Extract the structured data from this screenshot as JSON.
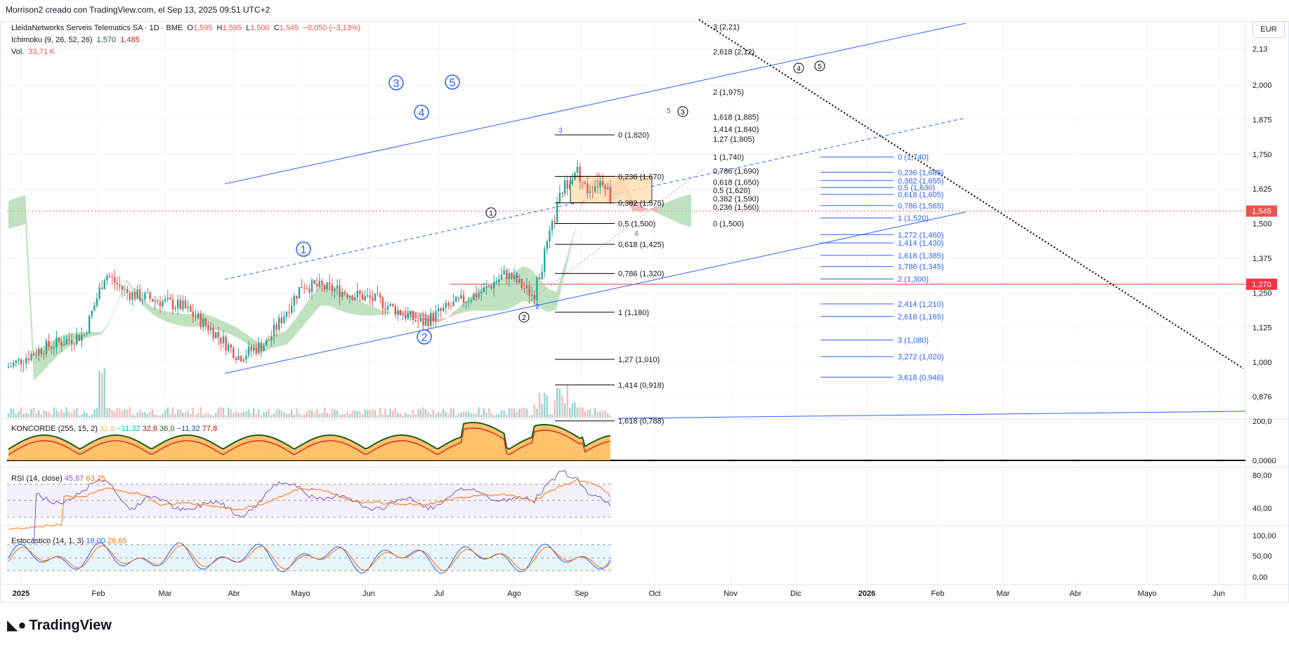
{
  "header": {
    "caption": "Morrison2 creado con TradingView.com, el Sep 13, 2025 09:51 UTC+2"
  },
  "legend": {
    "symbol": "LleidaNetworks Serveis Telematics SA · 1D · BME",
    "o_label": "O",
    "o": "1,595",
    "h_label": "H",
    "h": "1,595",
    "l_label": "L",
    "l": "1,500",
    "c_label": "C",
    "c": "1,545",
    "change": "−0,050 (−3,13%)",
    "ichimoku": "Ichimoku (9, 26, 52, 26)",
    "ichi_v1": "1,570",
    "ichi_v2": "1,485",
    "vol_label": "Vol.",
    "vol": "33,71 K"
  },
  "currency_button": "EUR",
  "konkorde_legend": {
    "name": "KONCORDE (255, 15, 2)",
    "v1": "32,8",
    "v2": "−11,32",
    "v3": "32,8",
    "v4": "36,0",
    "v5": "−11,32",
    "v6": "77,8"
  },
  "rsi_legend": {
    "name": "RSI (14, close)",
    "v1": "45,87",
    "v2": "63,25"
  },
  "stoch_legend": {
    "name": "Estocástico (14, 1, 3)",
    "v1": "18,00",
    "v2": "28,65"
  },
  "brand": "TradingView",
  "colors": {
    "up": "#26a69a",
    "down": "#ef5350",
    "blue": "#2962ff",
    "cloud_green": "#a5d6a7",
    "cloud_red": "#ef9a9a"
  },
  "chart_data": {
    "type": "candlestick",
    "price_axis_ticks": [
      "2,13",
      "2,000",
      "1,875",
      "1,750",
      "1,625",
      "1,500",
      "1,375",
      "1,250",
      "1,125",
      "1,000",
      "0,876"
    ],
    "price_axis_range": [
      0.8,
      2.2
    ],
    "last_price_label": "1,545",
    "horizontal_level_label": "1,270",
    "time_axis_ticks": [
      "2025",
      "Feb",
      "Mar",
      "Abr",
      "Mayo",
      "Jun",
      "Jul",
      "Ago",
      "Sep",
      "Oct",
      "Nov",
      "Dic",
      "2026",
      "Feb",
      "Mar",
      "Abr",
      "Mayo",
      "Jun"
    ],
    "fib_retracement": [
      {
        "label": "0 (1,820)",
        "value": 1.82
      },
      {
        "label": "0,236 (1,670)",
        "value": 1.67
      },
      {
        "label": "0,382 (1,575)",
        "value": 1.575
      },
      {
        "label": "0,5 (1,500)",
        "value": 1.5
      },
      {
        "label": "0,618 (1,425)",
        "value": 1.425
      },
      {
        "label": "0,786 (1,320)",
        "value": 1.32
      },
      {
        "label": "1 (1,180)",
        "value": 1.18
      },
      {
        "label": "1,27 (1,010)",
        "value": 1.01
      },
      {
        "label": "1,414 (0,918)",
        "value": 0.918
      },
      {
        "label": "1,618 (0,788)",
        "value": 0.788
      }
    ],
    "fib_extension": [
      {
        "label": "3 (2,21)",
        "value": 2.21
      },
      {
        "label": "2,618 (2,12)",
        "value": 2.12
      },
      {
        "label": "2 (1,975)",
        "value": 1.975
      },
      {
        "label": "1,618 (1,885)",
        "value": 1.885
      },
      {
        "label": "1,414 (1,840)",
        "value": 1.84
      },
      {
        "label": "1,27 (1,805)",
        "value": 1.805
      },
      {
        "label": "1 (1,740)",
        "value": 1.74
      },
      {
        "label": "0,786 (1,690)",
        "value": 1.69
      },
      {
        "label": "0,618 (1,650)",
        "value": 1.65
      },
      {
        "label": "0,5 (1,620)",
        "value": 1.62
      },
      {
        "label": "0,382 (1,590)",
        "value": 1.59
      },
      {
        "label": "0,236 (1,560)",
        "value": 1.56
      },
      {
        "label": "0 (1,500)",
        "value": 1.5
      }
    ],
    "fib_blue": [
      {
        "label": "0 (1,740)",
        "value": 1.74
      },
      {
        "label": "0,236 (1,685)",
        "value": 1.685
      },
      {
        "label": "0,382 (1,655)",
        "value": 1.655
      },
      {
        "label": "0,5 (1,630)",
        "value": 1.63
      },
      {
        "label": "0,618 (1,605)",
        "value": 1.605
      },
      {
        "label": "0,786 (1,565)",
        "value": 1.565
      },
      {
        "label": "1 (1,520)",
        "value": 1.52
      },
      {
        "label": "1,272 (1,460)",
        "value": 1.46
      },
      {
        "label": "1,414 (1,430)",
        "value": 1.43
      },
      {
        "label": "1,618 (1,385)",
        "value": 1.385
      },
      {
        "label": "1,786 (1,345)",
        "value": 1.345
      },
      {
        "label": "2 (1,300)",
        "value": 1.3
      },
      {
        "label": "2,414 (1,210)",
        "value": 1.21
      },
      {
        "label": "2,618 (1,165)",
        "value": 1.165
      },
      {
        "label": "3 (1,080)",
        "value": 1.08
      },
      {
        "label": "3,272 (1,020)",
        "value": 1.02
      },
      {
        "label": "3,618 (0,946)",
        "value": 0.946
      }
    ],
    "wave_labels_blue": [
      "1",
      "2",
      "3",
      "4",
      "5"
    ],
    "wave_labels_black": [
      "1",
      "2",
      "3",
      "4",
      "5"
    ],
    "minor_labels": [
      "3",
      "5",
      "1",
      "2",
      "4"
    ],
    "konkorde_axis": [
      "200,0",
      "0,0000"
    ],
    "rsi_axis": [
      "80,00",
      "40,00"
    ],
    "stoch_axis": [
      "100,00",
      "50,00",
      "0,00"
    ]
  }
}
